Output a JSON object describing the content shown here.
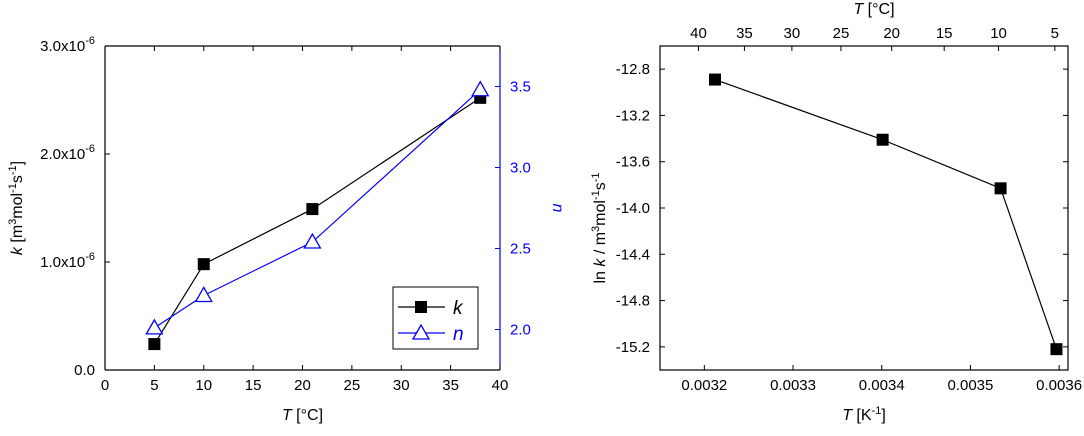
{
  "chart_data": [
    {
      "type": "line",
      "panel": "left",
      "xlabel": {
        "symbol": "T",
        "unit": " [°C]"
      },
      "ylabel_left": {
        "symbol": "k",
        "unit_prefix": " [m",
        "sup1": "3",
        "mid": "mol",
        "sup2": "-1",
        "s": "s",
        "sup3": "-1",
        "close": "]"
      },
      "ylabel_right": "n",
      "xlim": [
        0,
        40
      ],
      "ylim_left": [
        0,
        3e-06
      ],
      "ylim_right": [
        1.75,
        3.75
      ],
      "x_ticks": [
        {
          "v": 0,
          "label": "0"
        },
        {
          "v": 5,
          "label": "5"
        },
        {
          "v": 10,
          "label": "10"
        },
        {
          "v": 15,
          "label": "15"
        },
        {
          "v": 20,
          "label": "20"
        },
        {
          "v": 25,
          "label": "25"
        },
        {
          "v": 30,
          "label": "30"
        },
        {
          "v": 35,
          "label": "35"
        },
        {
          "v": 40,
          "label": "40"
        }
      ],
      "y_left_ticks": [
        {
          "v": 0.0,
          "label": "0.0",
          "exp": ""
        },
        {
          "v": 1e-06,
          "label": "1.0x10",
          "exp": "-6"
        },
        {
          "v": 2e-06,
          "label": "2.0x10",
          "exp": "-6"
        },
        {
          "v": 3e-06,
          "label": "3.0x10",
          "exp": "-6"
        }
      ],
      "y_right_ticks": [
        {
          "v": 2.0,
          "label": "2.0"
        },
        {
          "v": 2.5,
          "label": "2.5"
        },
        {
          "v": 3.0,
          "label": "3.0"
        },
        {
          "v": 3.5,
          "label": "3.5"
        }
      ],
      "series": [
        {
          "name": "k",
          "axis": "left",
          "marker": "square",
          "color": "#000000",
          "x": [
            5,
            10,
            21,
            38
          ],
          "y": [
            2.4e-07,
            9.8e-07,
            1.49e-06,
            2.52e-06
          ]
        },
        {
          "name": "n",
          "axis": "right",
          "marker": "triangle-open",
          "color": "#0000ff",
          "x": [
            5,
            10,
            21,
            38
          ],
          "y": [
            2.01,
            2.21,
            2.54,
            3.48
          ]
        }
      ],
      "legend": "bottom-right",
      "colors": {
        "right_axis": "#0000ff",
        "left_axis": "#000000"
      }
    },
    {
      "type": "line",
      "panel": "right",
      "xlabel": {
        "symbol": "T",
        "unit": " [K",
        "sup": "-1",
        "close": "]"
      },
      "top_xlabel": {
        "symbol": "T",
        "unit": " [°C]"
      },
      "ylabel": {
        "prefix": "ln ",
        "symbol": "k",
        "unit": " / m",
        "sup1": "3",
        "mid": "mol",
        "sup2": "-1",
        "s": "s",
        "sup3": "-1"
      },
      "xlim": [
        0.00315,
        0.00361
      ],
      "ylim": [
        -15.4,
        -12.6
      ],
      "x_ticks": [
        {
          "v": 0.0032,
          "label": "0.0032"
        },
        {
          "v": 0.0033,
          "label": "0.0033"
        },
        {
          "v": 0.0034,
          "label": "0.0034"
        },
        {
          "v": 0.0035,
          "label": "0.0035"
        },
        {
          "v": 0.0036,
          "label": "0.0036"
        }
      ],
      "top_x_ticks_celsius": [
        {
          "v": 40,
          "label": "40"
        },
        {
          "v": 35,
          "label": "35"
        },
        {
          "v": 30,
          "label": "30"
        },
        {
          "v": 25,
          "label": "25"
        },
        {
          "v": 20,
          "label": "20"
        },
        {
          "v": 15,
          "label": "15"
        },
        {
          "v": 10,
          "label": "10"
        },
        {
          "v": 5,
          "label": "5"
        }
      ],
      "y_ticks": [
        {
          "v": -12.8,
          "label": "-12.8"
        },
        {
          "v": -13.2,
          "label": "-13.2"
        },
        {
          "v": -13.6,
          "label": "-13.6"
        },
        {
          "v": -14.0,
          "label": "-14.0"
        },
        {
          "v": -14.4,
          "label": "-14.4"
        },
        {
          "v": -14.8,
          "label": "-14.8"
        },
        {
          "v": -15.2,
          "label": "-15.2"
        }
      ],
      "series": [
        {
          "marker": "square",
          "color": "#000000",
          "x": [
            0.003212,
            0.003401,
            0.003534,
            0.003597
          ],
          "y": [
            -12.89,
            -13.41,
            -13.83,
            -15.22
          ]
        }
      ]
    }
  ]
}
